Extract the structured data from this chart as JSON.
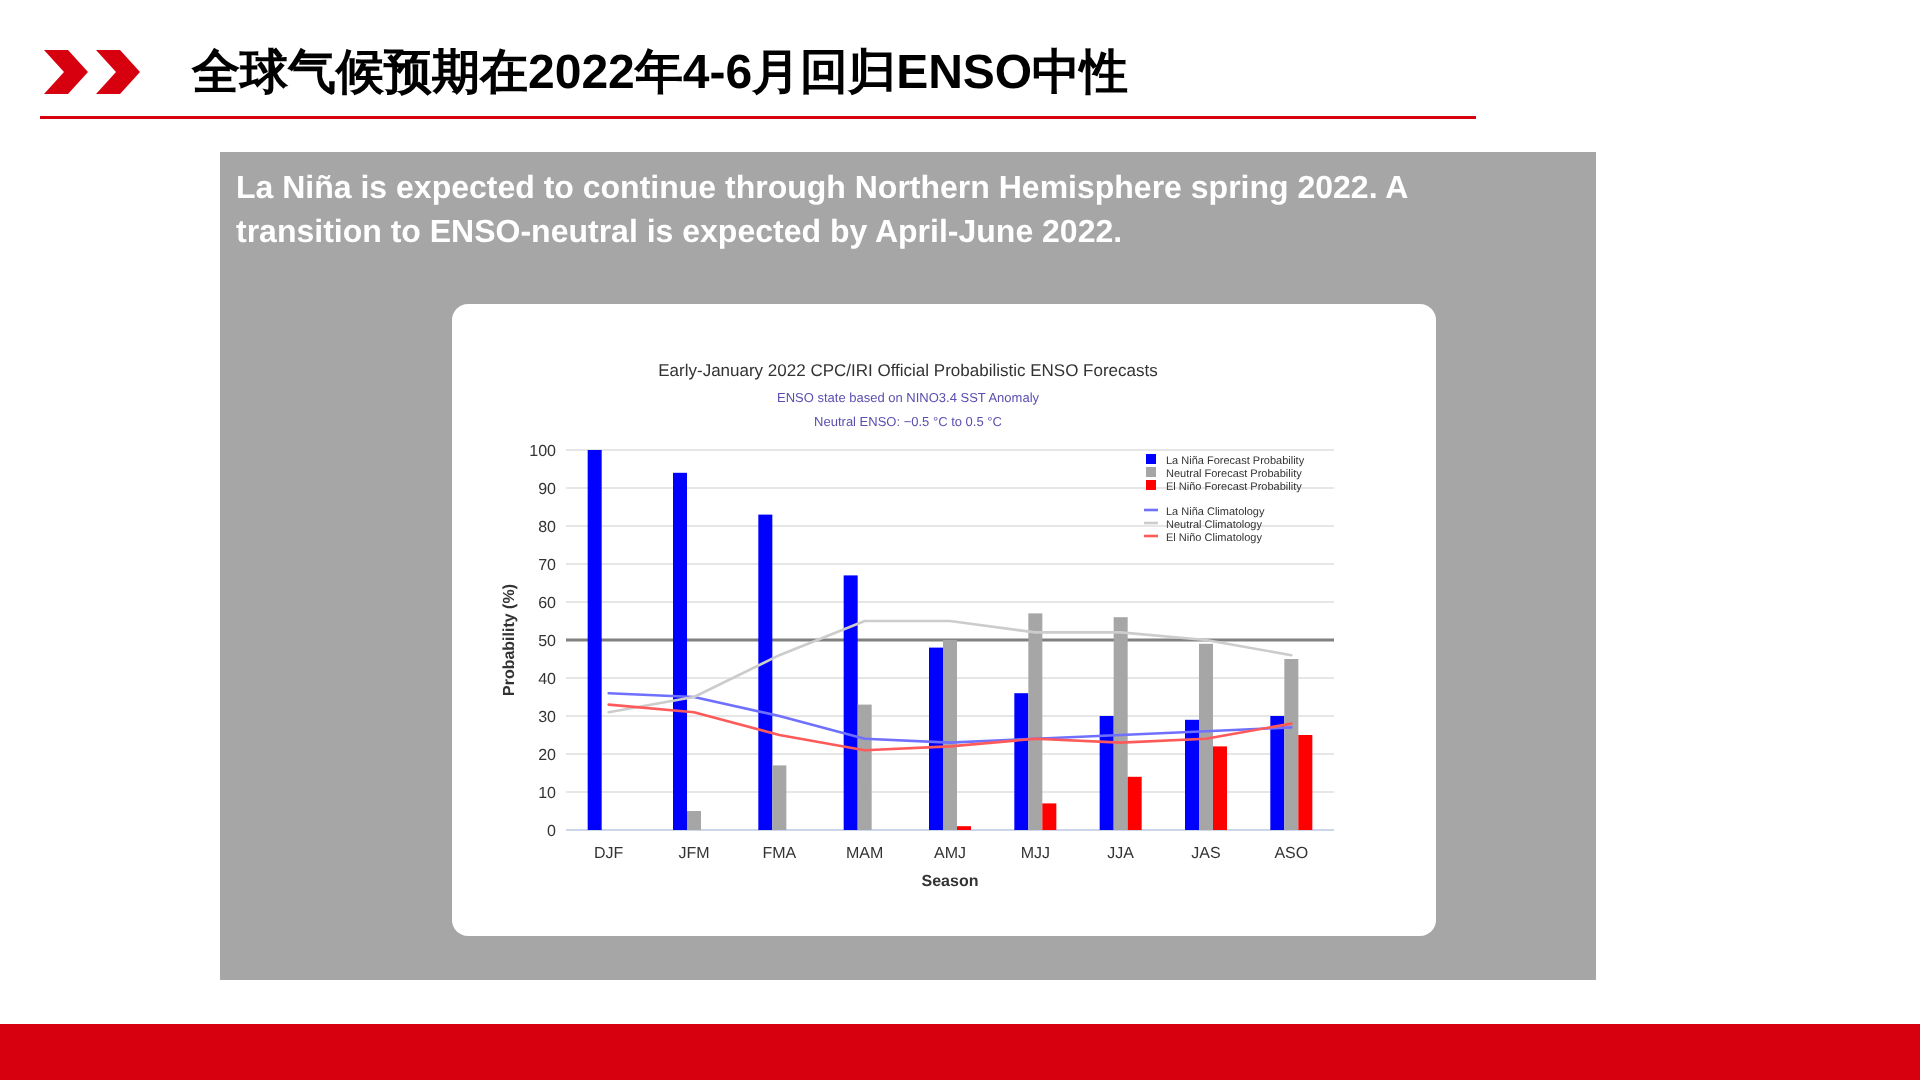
{
  "chart_data": {
    "type": "bar",
    "title": "Early-January 2022 CPC/IRI Official Probabilistic ENSO Forecasts",
    "annotations": [
      "全球气候预期在2022年4-6月回归ENSO中性",
      "La Niña is expected to continue through Northern Hemisphere spring 2022.  A transition to ENSO-neutral is expected by April-June 2022.",
      "ENSO state based on NINO3.4 SST Anomaly",
      "Neutral ENSO: −0.5 °C to 0.5 °C"
    ],
    "xlabel": "Season",
    "ylabel": "Probability (%)",
    "categories": [
      "DJF",
      "JFM",
      "FMA",
      "MAM",
      "AMJ",
      "MJJ",
      "JJA",
      "JAS",
      "ASO"
    ],
    "series": [
      {
        "name": "La Niña Forecast Probability",
        "type": "bar",
        "color": "#0000ff",
        "values": [
          100,
          94,
          83,
          67,
          48,
          36,
          30,
          29,
          30
        ]
      },
      {
        "name": "Neutral Forecast Probability",
        "type": "bar",
        "color": "#a6a6a6",
        "values": [
          0,
          5,
          17,
          33,
          50,
          57,
          56,
          49,
          45
        ]
      },
      {
        "name": "El Niño Forecast Probability",
        "type": "bar",
        "color": "#ff0000",
        "values": [
          0,
          0,
          0,
          0,
          1,
          7,
          14,
          22,
          25
        ]
      },
      {
        "name": "La Niña Climatology",
        "type": "line",
        "color": "#7070ff",
        "values": [
          36,
          35,
          30,
          24,
          23,
          24,
          25,
          26,
          27
        ]
      },
      {
        "name": "Neutral Climatology",
        "type": "line",
        "color": "#cccccc",
        "values": [
          31,
          35,
          46,
          55,
          55,
          52,
          52,
          50,
          46
        ]
      },
      {
        "name": "El Niño Climatology",
        "type": "line",
        "color": "#ff5a5a",
        "values": [
          33,
          31,
          25,
          21,
          22,
          24,
          23,
          24,
          28
        ]
      }
    ],
    "ylim": [
      0,
      100
    ],
    "yticks": [
      0,
      10,
      20,
      30,
      40,
      50,
      60,
      70,
      80,
      90,
      100
    ],
    "ref_lines": [
      {
        "axis": "y",
        "value": 50,
        "color": "#808080"
      }
    ],
    "grid": "y",
    "legend": "top right",
    "marker": "none",
    "line_style": "solid"
  }
}
